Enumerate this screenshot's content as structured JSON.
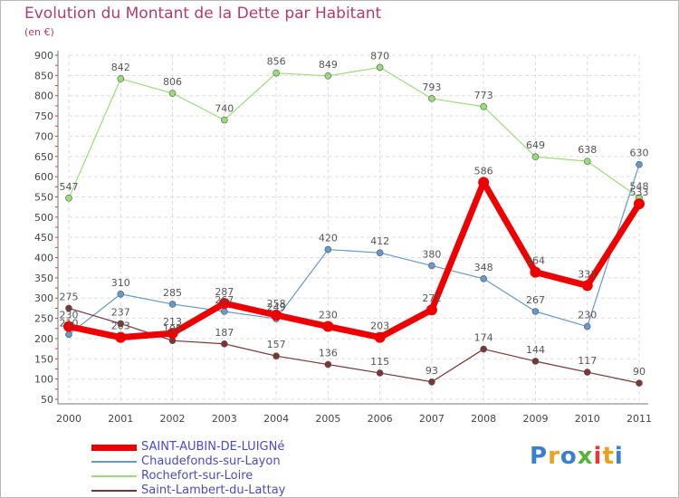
{
  "title": "Evolution du Montant de la Dette par Habitant",
  "unit": "(en €)",
  "logo": {
    "text": "Proxiti",
    "colors": [
      "#3a7fd0",
      "#e8a21f",
      "#3a7fd0",
      "#59b23a",
      "#e03a3a",
      "#e8a21f",
      "#3a7fd0"
    ]
  },
  "chart_data": {
    "type": "line",
    "x": [
      "2000",
      "2001",
      "2002",
      "2003",
      "2004",
      "2005",
      "2006",
      "2007",
      "2008",
      "2009",
      "2010",
      "2011"
    ],
    "ylim": [
      50,
      900
    ],
    "yticks": [
      50,
      100,
      150,
      200,
      250,
      300,
      350,
      400,
      450,
      500,
      550,
      600,
      650,
      700,
      750,
      800,
      850,
      900
    ],
    "grid": true,
    "legend_position": "bottom-left",
    "series": [
      {
        "name": "SAINT-AUBIN-DE-LUIGNé",
        "color": "#ee0000",
        "style": "thick",
        "labels": [
          "230",
          "203",
          "213",
          "287",
          "258",
          "230",
          "203",
          "271",
          "586",
          "364",
          "331",
          "533"
        ],
        "values": [
          230,
          203,
          213,
          287,
          258,
          230,
          203,
          271,
          586,
          364,
          331,
          533
        ]
      },
      {
        "name": "Chaudefonds-sur-Layon",
        "color": "#6699cc",
        "style": "thin",
        "labels": [
          "210",
          "310",
          "285",
          "267",
          "249",
          "420",
          "412",
          "380",
          "348",
          "267",
          "230",
          "630"
        ],
        "values": [
          210,
          310,
          285,
          267,
          249,
          420,
          412,
          380,
          348,
          267,
          230,
          630
        ]
      },
      {
        "name": "Rochefort-sur-Loire",
        "color": "#99dd77",
        "style": "thin",
        "labels": [
          "547",
          "842",
          "806",
          "740",
          "856",
          "849",
          "870",
          "793",
          "773",
          "649",
          "638",
          "548"
        ],
        "values": [
          547,
          842,
          806,
          740,
          856,
          849,
          870,
          793,
          773,
          649,
          638,
          548
        ]
      },
      {
        "name": "Saint-Lambert-du-Lattay",
        "color": "#7a3535",
        "style": "thin",
        "labels": [
          "275",
          "237",
          "195",
          "187",
          "157",
          "136",
          "115",
          "93",
          "174",
          "144",
          "117",
          "90"
        ],
        "values": [
          275,
          237,
          195,
          187,
          157,
          136,
          115,
          93,
          174,
          144,
          117,
          90
        ]
      }
    ]
  }
}
